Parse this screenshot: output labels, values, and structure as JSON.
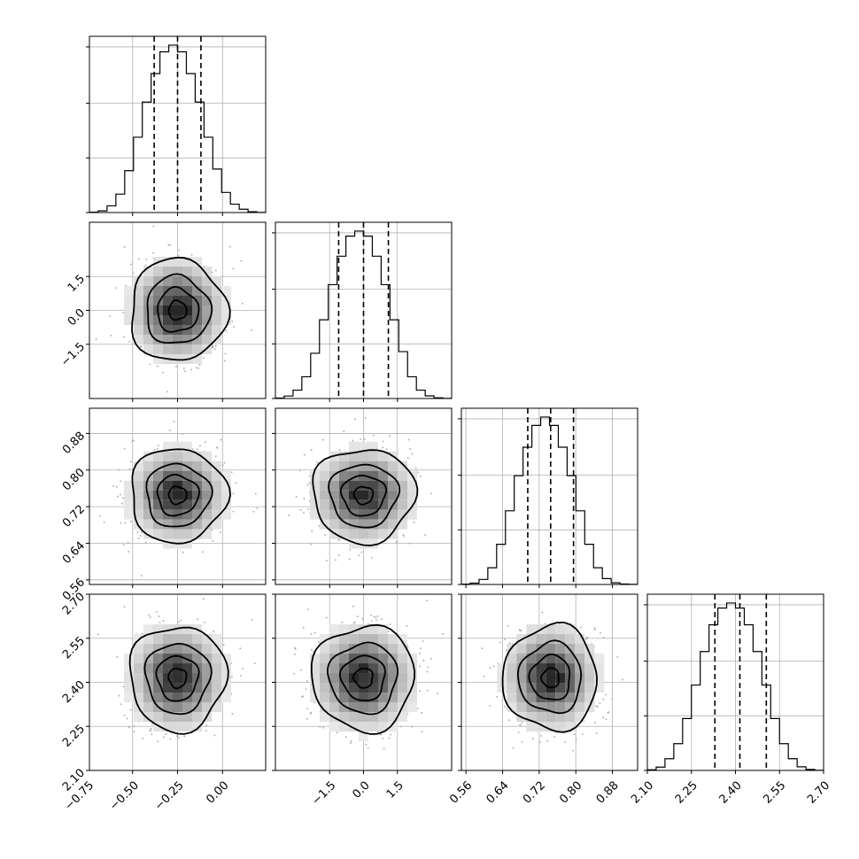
{
  "chart_data": {
    "type": "corner",
    "grid": true,
    "parameters": [
      {
        "ticks": [
          "−0.75",
          "−0.50",
          "−0.25",
          "0.00"
        ],
        "tick_values": [
          -0.75,
          -0.5,
          -0.25,
          0.0
        ],
        "range": [
          -0.74,
          0.24
        ],
        "median": -0.25,
        "quantile_16": -0.38,
        "quantile_84": -0.12,
        "spread": 0.13,
        "hist": [
          0.002,
          0.01,
          0.04,
          0.11,
          0.25,
          0.45,
          0.66,
          0.83,
          0.96,
          1.0,
          0.96,
          0.83,
          0.66,
          0.45,
          0.26,
          0.12,
          0.05,
          0.02,
          0.005,
          0.001
        ]
      },
      {
        "ticks": [
          "−1.5",
          "0.0",
          "1.5"
        ],
        "tick_values": [
          -1.5,
          0.0,
          1.5
        ],
        "range": [
          -3.9,
          3.9
        ],
        "median": 0.0,
        "quantile_16": -1.1,
        "quantile_84": 1.1,
        "spread": 1.1,
        "hist": [
          0.003,
          0.015,
          0.05,
          0.13,
          0.27,
          0.47,
          0.68,
          0.85,
          0.97,
          1.0,
          0.97,
          0.85,
          0.68,
          0.47,
          0.28,
          0.13,
          0.05,
          0.016,
          0.004,
          0.001
        ]
      },
      {
        "ticks": [
          "0.56",
          "0.64",
          "0.72",
          "0.80",
          "0.88"
        ],
        "tick_values": [
          0.56,
          0.64,
          0.72,
          0.8,
          0.88
        ],
        "range": [
          0.55,
          0.935
        ],
        "median": 0.745,
        "quantile_16": 0.695,
        "quantile_84": 0.795,
        "spread": 0.05,
        "hist": [
          0.002,
          0.008,
          0.03,
          0.1,
          0.24,
          0.44,
          0.65,
          0.82,
          0.95,
          1.0,
          0.95,
          0.82,
          0.65,
          0.44,
          0.24,
          0.1,
          0.035,
          0.01,
          0.003,
          0.001
        ]
      },
      {
        "ticks": [
          "2.10",
          "2.25",
          "2.40",
          "2.55",
          "2.70"
        ],
        "tick_values": [
          2.1,
          2.25,
          2.4,
          2.55,
          2.7
        ],
        "range": [
          2.1,
          2.7
        ],
        "median": 2.415,
        "quantile_16": 2.33,
        "quantile_84": 2.505,
        "spread": 0.087,
        "hist": [
          0.004,
          0.02,
          0.07,
          0.16,
          0.31,
          0.51,
          0.71,
          0.87,
          0.97,
          1.0,
          0.97,
          0.87,
          0.71,
          0.51,
          0.31,
          0.16,
          0.07,
          0.022,
          0.006,
          0.001
        ]
      }
    ],
    "contour_levels": [
      0.12,
      0.39,
      0.68,
      0.93
    ]
  }
}
